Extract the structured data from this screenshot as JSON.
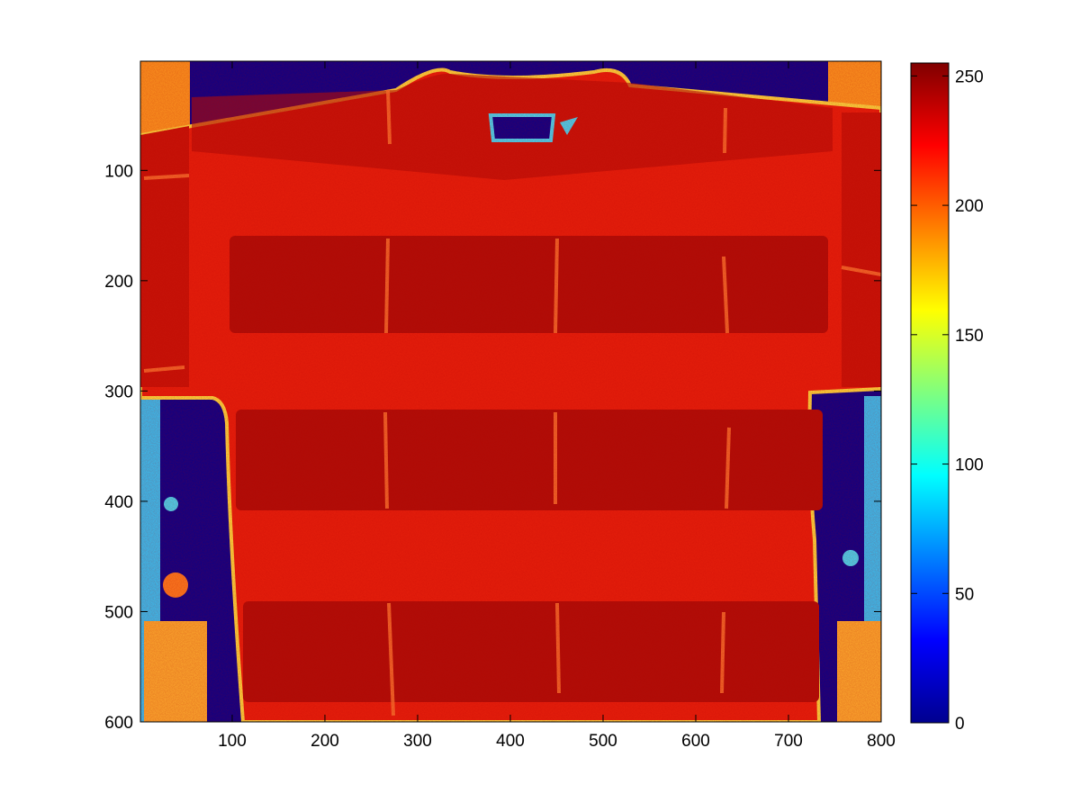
{
  "chart_data": {
    "type": "heatmap",
    "title": "",
    "xlabel": "",
    "ylabel": "",
    "xlim": [
      1,
      800
    ],
    "ylim": [
      1,
      600
    ],
    "y_reversed": true,
    "x_ticks": [
      "100",
      "200",
      "300",
      "400",
      "500",
      "600",
      "700",
      "800"
    ],
    "x_tick_values": [
      100,
      200,
      300,
      400,
      500,
      600,
      700,
      800
    ],
    "y_ticks": [
      "100",
      "200",
      "300",
      "400",
      "500",
      "600"
    ],
    "y_tick_values": [
      100,
      200,
      300,
      400,
      500,
      600
    ],
    "colorbar": {
      "colormap": "jet",
      "range": [
        0,
        255
      ],
      "ticks": [
        "0",
        "50",
        "100",
        "150",
        "200",
        "250"
      ],
      "tick_values": [
        0,
        50,
        100,
        150,
        200,
        250
      ]
    },
    "grid": false,
    "description_regions": [
      {
        "region": "background",
        "value": 10
      },
      {
        "region": "garment-body",
        "value": 225
      },
      {
        "region": "dark-stripes",
        "value": 245
      },
      {
        "region": "seams",
        "value": 200
      },
      {
        "region": "image-edges",
        "value": 170
      }
    ],
    "colors": {
      "low": "#00008f",
      "mid": "#7fff7f",
      "high": "#800000",
      "axis": "#000000"
    }
  }
}
